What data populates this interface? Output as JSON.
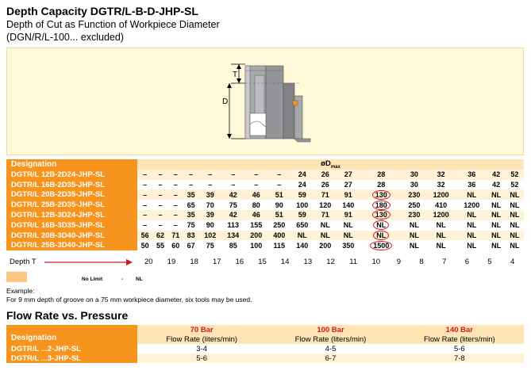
{
  "header": {
    "title": "Depth Capacity DGTR/L-B-D-JHP-SL",
    "subtitle_line1": "Depth of Cut as Function of Workpiece Diameter",
    "subtitle_line2": "(DGN/R/L-100... excluded)"
  },
  "figure": {
    "label_t": "T",
    "label_d": "D"
  },
  "depth_table": {
    "designation_header": "Designation",
    "diameter_header": "øD",
    "diameter_sub": "max",
    "rows": [
      {
        "label": "DGTR/L 12B-2D24-JHP-SL",
        "values": [
          "–",
          "–",
          "–",
          "–",
          "–",
          "–",
          "–",
          "–",
          "24",
          "26",
          "27",
          "28",
          "30",
          "32",
          "36",
          "42",
          "52"
        ],
        "circled": -1
      },
      {
        "label": "DGTR/L 16B-2D35-JHP-SL",
        "values": [
          "–",
          "–",
          "–",
          "–",
          "–",
          "–",
          "–",
          "–",
          "24",
          "26",
          "27",
          "28",
          "30",
          "32",
          "36",
          "42",
          "52"
        ],
        "circled": -1
      },
      {
        "label": "DGTR/L 20B-2D35-JHP-SL",
        "values": [
          "–",
          "–",
          "–",
          "35",
          "39",
          "42",
          "46",
          "51",
          "59",
          "71",
          "91",
          "130",
          "230",
          "1200",
          "NL",
          "NL",
          "NL"
        ],
        "circled": 11
      },
      {
        "label": "DGTR/L 25B-2D35-JHP-SL",
        "values": [
          "–",
          "–",
          "–",
          "65",
          "70",
          "75",
          "80",
          "90",
          "100",
          "120",
          "140",
          "180",
          "250",
          "410",
          "1200",
          "NL",
          "NL"
        ],
        "circled": 11
      },
      {
        "label": "DGTR/L 12B-3D24-JHP-SL",
        "values": [
          "–",
          "–",
          "–",
          "35",
          "39",
          "42",
          "46",
          "51",
          "59",
          "71",
          "91",
          "130",
          "230",
          "1200",
          "NL",
          "NL",
          "NL"
        ],
        "circled": 11
      },
      {
        "label": "DGTR/L 16B-3D35-JHP-SL",
        "values": [
          "–",
          "–",
          "–",
          "75",
          "90",
          "113",
          "155",
          "250",
          "650",
          "NL",
          "NL",
          "NL",
          "NL",
          "NL",
          "NL",
          "NL",
          "NL"
        ],
        "circled": 11
      },
      {
        "label": "DGTR/L 20B-3D40-JHP-SL",
        "values": [
          "56",
          "62",
          "71",
          "83",
          "102",
          "134",
          "200",
          "400",
          "NL",
          "NL",
          "NL",
          "NL",
          "NL",
          "NL",
          "NL",
          "NL",
          "NL"
        ],
        "circled": 11
      },
      {
        "label": "DGTR/L 25B-3D40-JHP-SL",
        "values": [
          "50",
          "55",
          "60",
          "67",
          "75",
          "85",
          "100",
          "115",
          "140",
          "200",
          "350",
          "1500",
          "NL",
          "NL",
          "NL",
          "NL",
          "NL"
        ],
        "circled": 11
      }
    ]
  },
  "depth_row": {
    "label": "Depth T",
    "values": [
      "20",
      "19",
      "18",
      "17",
      "16",
      "15",
      "14",
      "13",
      "12",
      "11",
      "10",
      "9",
      "8",
      "7",
      "6",
      "5",
      "4"
    ]
  },
  "legend": {
    "no_limit": "No Limit",
    "dash": "-",
    "nl": "NL"
  },
  "example": {
    "title": "Example:",
    "text": "For 9 mm depth of groove on a 75 mm workpiece diameter, six tools may be used."
  },
  "flow": {
    "title": "Flow Rate vs. Pressure",
    "designation_header": "Designation",
    "columns": [
      {
        "bar": "70 Bar",
        "rate": "Flow Rate (liters/min)"
      },
      {
        "bar": "100 Bar",
        "rate": "Flow Rate (liters/min)"
      },
      {
        "bar": "140 Bar",
        "rate": "Flow Rate (liters/min)"
      }
    ],
    "rows": [
      {
        "label": "DGTR/L ...2-JHP-SL",
        "values": [
          "3-4",
          "4-5",
          "5-6"
        ]
      },
      {
        "label": "DGTR/L ...3-JHP-SL",
        "values": [
          "5-6",
          "6-7",
          "7-8"
        ]
      }
    ]
  },
  "colors": {
    "orange": "#f7941d",
    "light_orange": "#ffe5b6",
    "row_alt": "#fff2d6",
    "figure_bg": "#fff9da",
    "red": "#d01a1a",
    "swatch": "#fbc683"
  }
}
